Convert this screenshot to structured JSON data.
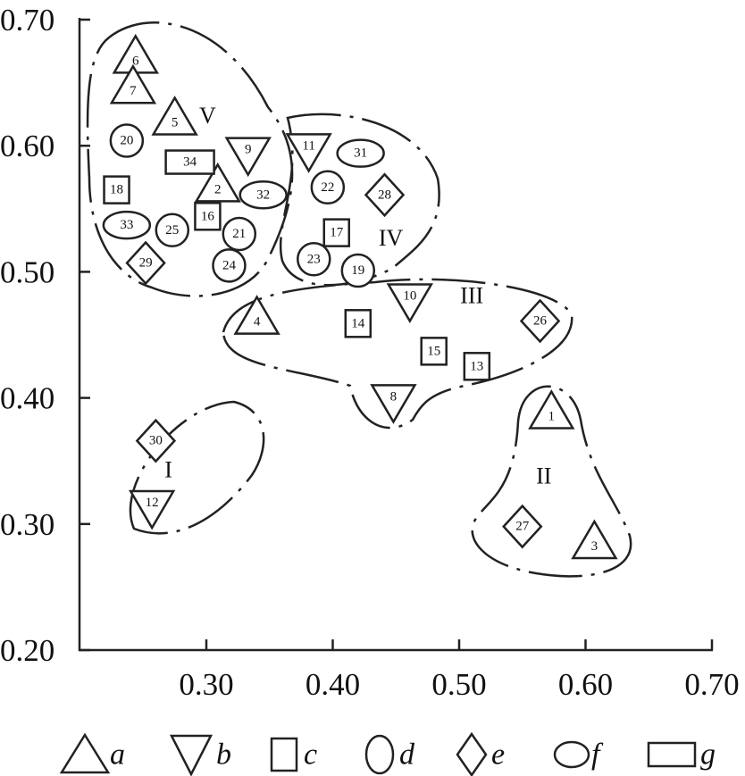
{
  "chart_data": {
    "type": "scatter",
    "title": "",
    "xlabel": "",
    "ylabel": "",
    "xlim": [
      0.2,
      0.7
    ],
    "ylim": [
      0.2,
      0.7
    ],
    "x_ticks": [
      "0.30",
      "0.40",
      "0.50",
      "0.60",
      "0.70"
    ],
    "y_ticks": [
      "0.20",
      "0.30",
      "0.40",
      "0.50",
      "0.60",
      "0.70"
    ],
    "grid": false,
    "legend_position": "bottom",
    "legend": [
      {
        "marker": "triangle-up",
        "label": "a"
      },
      {
        "marker": "triangle-down",
        "label": "b"
      },
      {
        "marker": "square",
        "label": "c"
      },
      {
        "marker": "circle",
        "label": "d"
      },
      {
        "marker": "diamond",
        "label": "e"
      },
      {
        "marker": "ellipse",
        "label": "f"
      },
      {
        "marker": "rectangle",
        "label": "g"
      }
    ],
    "points": [
      {
        "id": "1",
        "group": "a",
        "x": 0.573,
        "y": 0.388
      },
      {
        "id": "2",
        "group": "a",
        "x": 0.309,
        "y": 0.568
      },
      {
        "id": "3",
        "group": "a",
        "x": 0.607,
        "y": 0.285
      },
      {
        "id": "4",
        "group": "a",
        "x": 0.34,
        "y": 0.463
      },
      {
        "id": "5",
        "group": "a",
        "x": 0.275,
        "y": 0.621
      },
      {
        "id": "6",
        "group": "a",
        "x": 0.244,
        "y": 0.67
      },
      {
        "id": "7",
        "group": "a",
        "x": 0.242,
        "y": 0.646
      },
      {
        "id": "8",
        "group": "b",
        "x": 0.448,
        "y": 0.398
      },
      {
        "id": "9",
        "group": "b",
        "x": 0.333,
        "y": 0.594
      },
      {
        "id": "10",
        "group": "b",
        "x": 0.461,
        "y": 0.478
      },
      {
        "id": "11",
        "group": "b",
        "x": 0.381,
        "y": 0.597
      },
      {
        "id": "12",
        "group": "b",
        "x": 0.257,
        "y": 0.314
      },
      {
        "id": "13",
        "group": "c",
        "x": 0.514,
        "y": 0.425
      },
      {
        "id": "14",
        "group": "c",
        "x": 0.42,
        "y": 0.459
      },
      {
        "id": "15",
        "group": "c",
        "x": 0.48,
        "y": 0.437
      },
      {
        "id": "16",
        "group": "c",
        "x": 0.301,
        "y": 0.544
      },
      {
        "id": "17",
        "group": "c",
        "x": 0.403,
        "y": 0.531
      },
      {
        "id": "18",
        "group": "c",
        "x": 0.229,
        "y": 0.565
      },
      {
        "id": "19",
        "group": "d",
        "x": 0.42,
        "y": 0.501
      },
      {
        "id": "20",
        "group": "d",
        "x": 0.237,
        "y": 0.604
      },
      {
        "id": "21",
        "group": "d",
        "x": 0.326,
        "y": 0.53
      },
      {
        "id": "22",
        "group": "d",
        "x": 0.396,
        "y": 0.567
      },
      {
        "id": "23",
        "group": "d",
        "x": 0.385,
        "y": 0.51
      },
      {
        "id": "24",
        "group": "d",
        "x": 0.318,
        "y": 0.505
      },
      {
        "id": "25",
        "group": "d",
        "x": 0.273,
        "y": 0.533
      },
      {
        "id": "26",
        "group": "e",
        "x": 0.564,
        "y": 0.461
      },
      {
        "id": "27",
        "group": "e",
        "x": 0.55,
        "y": 0.298
      },
      {
        "id": "28",
        "group": "e",
        "x": 0.441,
        "y": 0.561
      },
      {
        "id": "29",
        "group": "e",
        "x": 0.252,
        "y": 0.507
      },
      {
        "id": "30",
        "group": "e",
        "x": 0.26,
        "y": 0.366
      },
      {
        "id": "31",
        "group": "f",
        "x": 0.422,
        "y": 0.594
      },
      {
        "id": "32",
        "group": "f",
        "x": 0.345,
        "y": 0.561
      },
      {
        "id": "33",
        "group": "f",
        "x": 0.237,
        "y": 0.537
      },
      {
        "id": "34",
        "group": "g",
        "x": 0.287,
        "y": 0.587
      }
    ],
    "clusters": [
      {
        "label": "I",
        "x": 0.27,
        "y": 0.343
      },
      {
        "label": "II",
        "x": 0.567,
        "y": 0.338
      },
      {
        "label": "III",
        "x": 0.51,
        "y": 0.481
      },
      {
        "label": "IV",
        "x": 0.446,
        "y": 0.527
      },
      {
        "label": "V",
        "x": 0.301,
        "y": 0.624
      }
    ]
  }
}
